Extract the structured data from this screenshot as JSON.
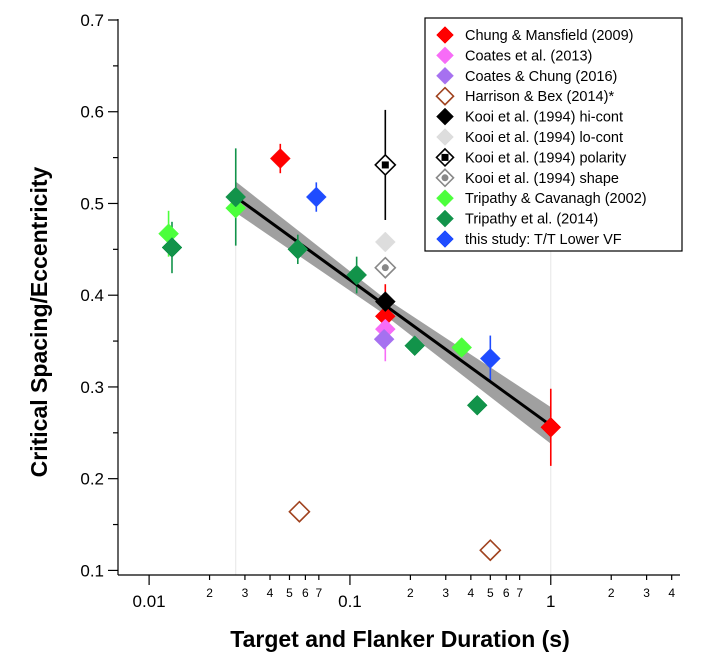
{
  "chart_data": {
    "type": "scatter",
    "xlabel": "Target and Flanker Duration (s)",
    "ylabel": "Critical Spacing/Eccentricity",
    "xscale": "log",
    "xlim": [
      0.007,
      4.4
    ],
    "ylim": [
      0.095,
      0.7
    ],
    "major_x_ticks": [
      {
        "value": 0.01,
        "label": "0.01"
      },
      {
        "value": 0.1,
        "label": "0.1"
      },
      {
        "value": 1,
        "label": "1"
      }
    ],
    "minor_x_ticks": [
      {
        "value": 0.02,
        "label": "2"
      },
      {
        "value": 0.03,
        "label": "3"
      },
      {
        "value": 0.04,
        "label": "4"
      },
      {
        "value": 0.05,
        "label": "5"
      },
      {
        "value": 0.06,
        "label": "6"
      },
      {
        "value": 0.07,
        "label": "7"
      },
      {
        "value": 0.2,
        "label": "2"
      },
      {
        "value": 0.3,
        "label": "3"
      },
      {
        "value": 0.4,
        "label": "4"
      },
      {
        "value": 0.5,
        "label": "5"
      },
      {
        "value": 0.6,
        "label": "6"
      },
      {
        "value": 0.7,
        "label": "7"
      },
      {
        "value": 2,
        "label": "2"
      },
      {
        "value": 3,
        "label": "3"
      },
      {
        "value": 4,
        "label": "4"
      }
    ],
    "y_ticks": [
      {
        "value": 0.1,
        "label": "0.1"
      },
      {
        "value": 0.2,
        "label": "0.2"
      },
      {
        "value": 0.3,
        "label": "0.3"
      },
      {
        "value": 0.4,
        "label": "0.4"
      },
      {
        "value": 0.5,
        "label": "0.5"
      },
      {
        "value": 0.6,
        "label": "0.6"
      },
      {
        "value": 0.7,
        "label": "0.7"
      }
    ],
    "legend_position": "top-right",
    "fit": {
      "x_start": 0.027,
      "y_start": 0.507,
      "x_end": 1.0,
      "y_end": 0.258,
      "band_start": [
        0.49,
        0.524
      ],
      "band_mid": [
        0.383,
        0.401
      ],
      "mid_x": 0.14,
      "band_end": [
        0.238,
        0.278
      ],
      "color": "#000000",
      "band_color": "#a0a0a0"
    },
    "guides": [
      {
        "x": 0.027
      },
      {
        "x": 1.0
      }
    ],
    "series": [
      {
        "name": "Chung & Mansfield (2009)",
        "color": "#ff0000",
        "marker": "filled-diamond",
        "points": [
          {
            "x": 0.045,
            "y": 0.549,
            "err": 0.016
          },
          {
            "x": 0.15,
            "y": 0.377,
            "err": 0.035
          },
          {
            "x": 1.0,
            "y": 0.256,
            "err": 0.042
          }
        ]
      },
      {
        "name": "Coates et al. (2013)",
        "color": "#f76cf7",
        "marker": "filled-diamond",
        "points": [
          {
            "x": 0.15,
            "y": 0.363,
            "err": 0.035
          }
        ]
      },
      {
        "name": "Coates & Chung (2016)",
        "color": "#a671f0",
        "marker": "filled-diamond",
        "points": [
          {
            "x": 0.148,
            "y": 0.352,
            "err": 0.0
          }
        ]
      },
      {
        "name": "Harrison & Bex (2014)*",
        "color": "#a0421e",
        "marker": "open-diamond",
        "points": [
          {
            "x": 0.056,
            "y": 0.164,
            "err": 0.0
          },
          {
            "x": 0.5,
            "y": 0.122,
            "err": 0.0
          }
        ]
      },
      {
        "name": "Kooi et al. (1994) hi-cont",
        "color": "#000000",
        "marker": "filled-diamond",
        "points": [
          {
            "x": 0.15,
            "y": 0.393,
            "err": 0.0
          }
        ]
      },
      {
        "name": "Kooi et al. (1994) lo-cont",
        "color": "#dddddd",
        "marker": "filled-diamond",
        "points": [
          {
            "x": 0.15,
            "y": 0.458,
            "err": 0.0
          }
        ]
      },
      {
        "name": "Kooi et al. (1994) polarity",
        "color": "#000000",
        "marker": "open-diamond-square",
        "points": [
          {
            "x": 0.15,
            "y": 0.542,
            "err": 0.06
          }
        ]
      },
      {
        "name": "Kooi et al. (1994) shape",
        "color": "#888888",
        "marker": "open-diamond-dot",
        "points": [
          {
            "x": 0.15,
            "y": 0.43,
            "err": 0.0
          }
        ]
      },
      {
        "name": "Tripathy & Cavanagh (2002)",
        "color": "#4cff3c",
        "marker": "filled-diamond",
        "points": [
          {
            "x": 0.0125,
            "y": 0.467,
            "err": 0.025
          },
          {
            "x": 0.027,
            "y": 0.495,
            "err": 0.0
          },
          {
            "x": 0.36,
            "y": 0.343,
            "err": 0.0
          }
        ]
      },
      {
        "name": "Tripathy et al. (2014)",
        "color": "#12934a",
        "marker": "filled-diamond",
        "points": [
          {
            "x": 0.013,
            "y": 0.452,
            "err": 0.028
          },
          {
            "x": 0.027,
            "y": 0.507,
            "err": 0.053
          },
          {
            "x": 0.055,
            "y": 0.45,
            "err": 0.016
          },
          {
            "x": 0.108,
            "y": 0.422,
            "err": 0.02
          },
          {
            "x": 0.21,
            "y": 0.345,
            "err": 0.0
          },
          {
            "x": 0.43,
            "y": 0.28,
            "err": 0.0
          }
        ]
      },
      {
        "name": "this study: T/T Lower VF",
        "color": "#1f4cff",
        "marker": "filled-diamond",
        "points": [
          {
            "x": 0.068,
            "y": 0.507,
            "err": 0.016
          },
          {
            "x": 0.5,
            "y": 0.331,
            "err": 0.025
          }
        ]
      }
    ]
  }
}
